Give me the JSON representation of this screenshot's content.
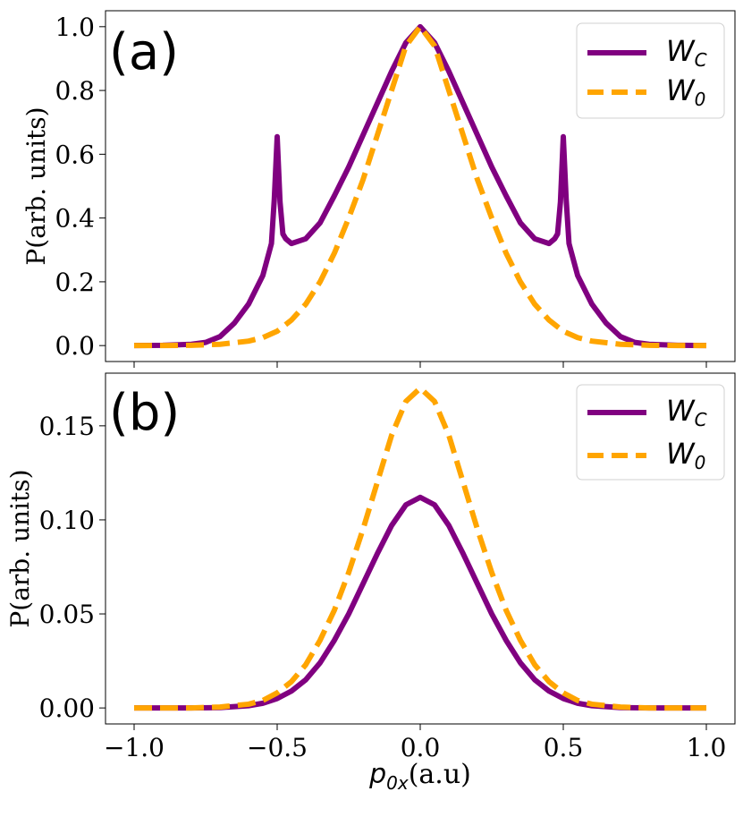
{
  "chart_data": [
    {
      "type": "line",
      "panel_label": "(a)",
      "title": "",
      "xlabel": "",
      "ylabel": "P(arb. units)",
      "xlim": [
        -1.0,
        1.0
      ],
      "ylim": [
        -0.05,
        1.05
      ],
      "yticks": [
        0.0,
        0.2,
        0.4,
        0.6,
        0.8,
        1.0
      ],
      "ytick_labels": [
        "0.0",
        "0.2",
        "0.4",
        "0.6",
        "0.8",
        "1.0"
      ],
      "xticks": [
        -1.0,
        -0.5,
        0.0,
        0.5,
        1.0
      ],
      "xtick_labels_shown": false,
      "legend_position": "top-right",
      "series": [
        {
          "name": "W_C",
          "legend_main": "W",
          "legend_sub": "C",
          "color": "#800080",
          "style": "solid",
          "x": [
            -1.0,
            -0.9,
            -0.8,
            -0.75,
            -0.7,
            -0.65,
            -0.6,
            -0.55,
            -0.52,
            -0.51,
            -0.5,
            -0.49,
            -0.48,
            -0.47,
            -0.45,
            -0.4,
            -0.35,
            -0.3,
            -0.25,
            -0.2,
            -0.15,
            -0.1,
            -0.05,
            0.0,
            0.05,
            0.1,
            0.15,
            0.2,
            0.25,
            0.3,
            0.35,
            0.4,
            0.45,
            0.47,
            0.48,
            0.49,
            0.5,
            0.51,
            0.52,
            0.55,
            0.6,
            0.65,
            0.7,
            0.75,
            0.8,
            0.9,
            1.0
          ],
          "y": [
            0.0,
            0.001,
            0.004,
            0.01,
            0.028,
            0.07,
            0.13,
            0.22,
            0.32,
            0.46,
            0.655,
            0.45,
            0.35,
            0.335,
            0.32,
            0.335,
            0.385,
            0.47,
            0.56,
            0.66,
            0.76,
            0.86,
            0.95,
            1.0,
            0.95,
            0.86,
            0.76,
            0.66,
            0.56,
            0.47,
            0.385,
            0.335,
            0.32,
            0.335,
            0.35,
            0.45,
            0.655,
            0.46,
            0.32,
            0.22,
            0.13,
            0.07,
            0.028,
            0.01,
            0.004,
            0.001,
            0.0
          ]
        },
        {
          "name": "W_0",
          "legend_main": "W",
          "legend_sub": "0",
          "color": "#FFA500",
          "style": "dashed",
          "x": [
            -1.0,
            -0.9,
            -0.8,
            -0.7,
            -0.6,
            -0.55,
            -0.5,
            -0.45,
            -0.4,
            -0.35,
            -0.3,
            -0.25,
            -0.2,
            -0.15,
            -0.1,
            -0.05,
            0.0,
            0.05,
            0.1,
            0.15,
            0.2,
            0.25,
            0.3,
            0.35,
            0.4,
            0.45,
            0.5,
            0.55,
            0.6,
            0.7,
            0.8,
            0.9,
            1.0
          ],
          "y": [
            0.0,
            0.0,
            0.001,
            0.004,
            0.014,
            0.025,
            0.045,
            0.08,
            0.13,
            0.2,
            0.29,
            0.4,
            0.52,
            0.66,
            0.8,
            0.94,
            1.0,
            0.94,
            0.8,
            0.66,
            0.52,
            0.4,
            0.29,
            0.2,
            0.13,
            0.08,
            0.045,
            0.025,
            0.014,
            0.004,
            0.001,
            0.0,
            0.0
          ]
        }
      ]
    },
    {
      "type": "line",
      "panel_label": "(b)",
      "title": "",
      "xlabel_main": "p",
      "xlabel_sub": "0x",
      "xlabel_units": "(a.u)",
      "ylabel": "P(arb. units)",
      "xlim": [
        -1.0,
        1.0
      ],
      "ylim": [
        -0.0085,
        0.178
      ],
      "yticks": [
        0.0,
        0.05,
        0.1,
        0.15
      ],
      "ytick_labels": [
        "0.00",
        "0.05",
        "0.10",
        "0.15"
      ],
      "xticks": [
        -1.0,
        -0.5,
        0.0,
        0.5,
        1.0
      ],
      "xtick_labels": [
        "−1.0",
        "−0.5",
        "0.0",
        "0.5",
        "1.0"
      ],
      "legend_position": "top-right",
      "series": [
        {
          "name": "W_C",
          "legend_main": "W",
          "legend_sub": "C",
          "color": "#800080",
          "style": "solid",
          "x": [
            -1.0,
            -0.9,
            -0.8,
            -0.7,
            -0.6,
            -0.55,
            -0.5,
            -0.45,
            -0.4,
            -0.35,
            -0.3,
            -0.25,
            -0.2,
            -0.15,
            -0.1,
            -0.05,
            0.0,
            0.05,
            0.1,
            0.15,
            0.2,
            0.25,
            0.3,
            0.35,
            0.4,
            0.45,
            0.5,
            0.55,
            0.6,
            0.7,
            0.8,
            0.9,
            1.0
          ],
          "y": [
            0.0,
            0.0,
            0.0,
            0.0002,
            0.0012,
            0.0025,
            0.005,
            0.009,
            0.015,
            0.024,
            0.036,
            0.05,
            0.066,
            0.082,
            0.097,
            0.108,
            0.112,
            0.108,
            0.097,
            0.082,
            0.066,
            0.05,
            0.036,
            0.024,
            0.015,
            0.009,
            0.005,
            0.0025,
            0.0012,
            0.0002,
            0.0,
            0.0,
            0.0
          ]
        },
        {
          "name": "W_0",
          "legend_main": "W",
          "legend_sub": "0",
          "color": "#FFA500",
          "style": "dashed",
          "x": [
            -1.0,
            -0.9,
            -0.8,
            -0.7,
            -0.6,
            -0.55,
            -0.5,
            -0.45,
            -0.4,
            -0.35,
            -0.3,
            -0.25,
            -0.2,
            -0.15,
            -0.1,
            -0.05,
            0.0,
            0.05,
            0.1,
            0.15,
            0.2,
            0.25,
            0.3,
            0.35,
            0.4,
            0.45,
            0.5,
            0.55,
            0.6,
            0.7,
            0.8,
            0.9,
            1.0
          ],
          "y": [
            0.0,
            0.0,
            0.0,
            0.0005,
            0.002,
            0.004,
            0.008,
            0.014,
            0.023,
            0.036,
            0.052,
            0.072,
            0.095,
            0.12,
            0.145,
            0.163,
            0.17,
            0.163,
            0.145,
            0.12,
            0.095,
            0.072,
            0.052,
            0.036,
            0.023,
            0.014,
            0.008,
            0.004,
            0.002,
            0.0005,
            0.0,
            0.0,
            0.0
          ]
        }
      ]
    }
  ]
}
